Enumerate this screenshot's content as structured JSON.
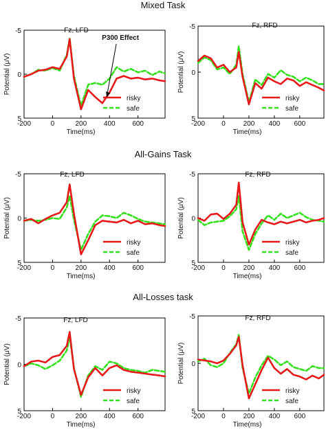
{
  "figure": {
    "sections": [
      {
        "title": "Mixed Task",
        "panels": [
          {
            "title": "Fz, LFD",
            "annotation": "P300 Effect"
          },
          {
            "title": "Fz, RFD"
          }
        ]
      },
      {
        "title": "All-Gains Task",
        "panels": [
          {
            "title": "Fz, LFD"
          },
          {
            "title": "Fz, RFD"
          }
        ]
      },
      {
        "title": "All-Losses task",
        "panels": [
          {
            "title": "Fz, LFD"
          },
          {
            "title": "Fz, RFD"
          }
        ]
      }
    ]
  },
  "colors": {
    "risky": "#e8191a",
    "safe": "#33e01c",
    "axis": "#000000"
  },
  "chart_data": [
    {
      "type": "line",
      "title": "Fz, LFD",
      "xlabel": "Time(ms)",
      "ylabel": "Potential (μV)",
      "xticks": [
        -200,
        0,
        200,
        400,
        600
      ],
      "yticks": [
        -5,
        0,
        5
      ],
      "xlim": [
        -200,
        790
      ],
      "ylim": [
        5,
        -5
      ],
      "y_inverted": true,
      "annotation": {
        "text": "P300 Effect",
        "x": 380
      },
      "legend": "bottom-right",
      "x": [
        -200,
        -150,
        -100,
        -50,
        0,
        50,
        100,
        120,
        150,
        200,
        250,
        300,
        350,
        400,
        450,
        500,
        550,
        600,
        650,
        700,
        750,
        790
      ],
      "series": [
        {
          "name": "risky",
          "values": [
            0.3,
            0.0,
            -0.4,
            -0.5,
            -0.8,
            -0.6,
            -2.0,
            -4.0,
            0.5,
            4.0,
            1.8,
            2.6,
            3.3,
            2.1,
            0.5,
            0.2,
            0.5,
            0.4,
            0.6,
            0.5,
            0.7,
            0.8
          ]
        },
        {
          "name": "safe",
          "values": [
            0.3,
            0.0,
            -0.5,
            -0.4,
            -0.7,
            -0.4,
            -2.2,
            -4.1,
            0.2,
            3.6,
            1.2,
            1.0,
            1.2,
            0.5,
            -0.8,
            -0.3,
            -0.6,
            -0.2,
            -0.4,
            0.1,
            -0.3,
            -0.1
          ]
        }
      ]
    },
    {
      "type": "line",
      "title": "Fz, RFD",
      "xlabel": "Time(ms)",
      "ylabel": "Potential (μV)",
      "xticks": [
        -200,
        0,
        200,
        400,
        600
      ],
      "yticks": [
        -5,
        0,
        5
      ],
      "xlim": [
        -200,
        790
      ],
      "ylim": [
        5,
        -5
      ],
      "y_inverted": true,
      "legend": "bottom-right",
      "x": [
        -200,
        -150,
        -100,
        -50,
        0,
        50,
        100,
        120,
        150,
        200,
        250,
        300,
        350,
        400,
        450,
        500,
        550,
        600,
        650,
        700,
        750,
        790
      ],
      "series": [
        {
          "name": "risky",
          "values": [
            -1.2,
            -1.8,
            -1.5,
            -0.5,
            -0.8,
            0.0,
            -0.5,
            -2.2,
            0.5,
            3.5,
            1.2,
            1.8,
            0.6,
            1.0,
            1.3,
            0.7,
            0.9,
            1.5,
            1.1,
            1.4,
            1.7,
            2.0
          ]
        },
        {
          "name": "safe",
          "values": [
            -1.0,
            -1.6,
            -1.3,
            -0.3,
            -0.5,
            0.2,
            -0.8,
            -2.8,
            0.2,
            3.3,
            0.8,
            1.4,
            0.2,
            0.6,
            -0.2,
            0.3,
            0.5,
            1.0,
            0.6,
            0.9,
            1.3,
            1.3
          ]
        }
      ]
    },
    {
      "type": "line",
      "title": "Fz, LFD",
      "xlabel": "Time(ms)",
      "ylabel": "Potential (μV)",
      "xticks": [
        -200,
        0,
        200,
        400,
        600
      ],
      "yticks": [
        -5,
        0,
        5
      ],
      "xlim": [
        -200,
        790
      ],
      "ylim": [
        5,
        -5
      ],
      "y_inverted": true,
      "legend": "bottom-right",
      "x": [
        -200,
        -150,
        -100,
        -50,
        0,
        50,
        100,
        120,
        150,
        200,
        250,
        300,
        350,
        400,
        450,
        500,
        550,
        600,
        650,
        700,
        750,
        790
      ],
      "series": [
        {
          "name": "risky",
          "values": [
            0.3,
            0.1,
            0.6,
            0.1,
            -0.3,
            -0.6,
            -1.8,
            -3.8,
            -0.5,
            4.1,
            2.5,
            0.8,
            0.3,
            0.4,
            0.5,
            0.2,
            0.6,
            0.3,
            0.7,
            0.6,
            0.8,
            0.9
          ]
        },
        {
          "name": "safe",
          "values": [
            0.3,
            0.2,
            0.3,
            0.2,
            0.0,
            0.1,
            -1.2,
            -2.5,
            0.2,
            3.6,
            1.8,
            0.4,
            -0.3,
            -0.2,
            0.0,
            -0.6,
            -0.3,
            0.1,
            0.4,
            0.5,
            0.6,
            0.7
          ]
        }
      ]
    },
    {
      "type": "line",
      "title": "Fz, RFD",
      "xlabel": "Time(ms)",
      "ylabel": "Potential (μV)",
      "xticks": [
        -200,
        0,
        200,
        400,
        600
      ],
      "yticks": [
        -5,
        0,
        5
      ],
      "xlim": [
        -200,
        790
      ],
      "ylim": [
        5,
        -5
      ],
      "y_inverted": true,
      "legend": "bottom-right",
      "x": [
        -200,
        -150,
        -100,
        -50,
        0,
        50,
        100,
        120,
        150,
        200,
        250,
        300,
        350,
        400,
        450,
        500,
        550,
        600,
        650,
        700,
        750,
        790
      ],
      "series": [
        {
          "name": "risky",
          "values": [
            0.0,
            0.3,
            -0.4,
            -0.5,
            0.1,
            -0.5,
            -1.5,
            -4.0,
            0.5,
            3.0,
            1.3,
            0.2,
            0.5,
            0.7,
            0.4,
            0.6,
            0.4,
            0.2,
            0.5,
            0.3,
            0.2,
            0.0
          ]
        },
        {
          "name": "safe",
          "values": [
            0.2,
            0.8,
            0.5,
            0.4,
            0.3,
            -0.2,
            -1.0,
            -2.5,
            1.5,
            3.6,
            1.8,
            0.6,
            -0.3,
            0.2,
            -0.5,
            0.0,
            -0.3,
            -0.6,
            -0.1,
            0.2,
            0.3,
            0.4
          ]
        }
      ]
    },
    {
      "type": "line",
      "title": "Fz, LFD",
      "xlabel": "Time(ms)",
      "ylabel": "Potential (μV)",
      "xticks": [
        -200,
        0,
        200,
        400,
        600
      ],
      "yticks": [
        -5,
        0,
        5
      ],
      "xlim": [
        -200,
        790
      ],
      "ylim": [
        5,
        -5
      ],
      "y_inverted": true,
      "legend": "bottom-right",
      "x": [
        -200,
        -150,
        -100,
        -50,
        0,
        50,
        100,
        120,
        150,
        200,
        250,
        300,
        350,
        400,
        450,
        500,
        550,
        600,
        650,
        700,
        750,
        790
      ],
      "series": [
        {
          "name": "risky",
          "values": [
            0.2,
            -0.3,
            -0.4,
            -0.2,
            -0.8,
            -1.0,
            -2.0,
            -3.5,
            0.5,
            3.3,
            1.4,
            0.4,
            1.2,
            0.4,
            0.1,
            0.6,
            0.8,
            0.9,
            1.0,
            1.1,
            1.2,
            1.3
          ]
        },
        {
          "name": "safe",
          "values": [
            0.2,
            -0.1,
            0.1,
            0.5,
            0.1,
            -0.4,
            -1.5,
            -3.0,
            0.4,
            3.5,
            1.2,
            0.2,
            0.6,
            -0.3,
            -0.1,
            0.4,
            0.6,
            0.7,
            0.9,
            0.6,
            0.7,
            0.8
          ]
        }
      ]
    },
    {
      "type": "line",
      "title": "Fz, RFD",
      "xlabel": "Time(ms)",
      "ylabel": "Potential (μV)",
      "xticks": [
        -200,
        0,
        200,
        400,
        600
      ],
      "yticks": [
        -5,
        0,
        5
      ],
      "xlim": [
        -200,
        790
      ],
      "ylim": [
        5,
        -5
      ],
      "y_inverted": true,
      "legend": "bottom-right",
      "x": [
        -200,
        -150,
        -100,
        -50,
        0,
        50,
        100,
        120,
        150,
        200,
        250,
        300,
        350,
        400,
        450,
        500,
        550,
        600,
        650,
        700,
        750,
        790
      ],
      "series": [
        {
          "name": "risky",
          "values": [
            -0.4,
            -0.3,
            -0.2,
            0.0,
            -0.3,
            -1.0,
            -1.9,
            -2.8,
            0.2,
            3.7,
            2.2,
            0.7,
            -0.6,
            0.5,
            1.1,
            0.6,
            1.2,
            1.4,
            1.7,
            1.3,
            1.6,
            1.2
          ]
        },
        {
          "name": "safe",
          "values": [
            -0.2,
            -0.5,
            0.2,
            0.4,
            0.0,
            -1.1,
            -2.0,
            -3.0,
            0.5,
            3.2,
            1.5,
            0.2,
            -0.8,
            -0.4,
            0.2,
            -0.2,
            0.4,
            0.6,
            0.8,
            0.3,
            0.5,
            0.5
          ]
        }
      ]
    }
  ]
}
